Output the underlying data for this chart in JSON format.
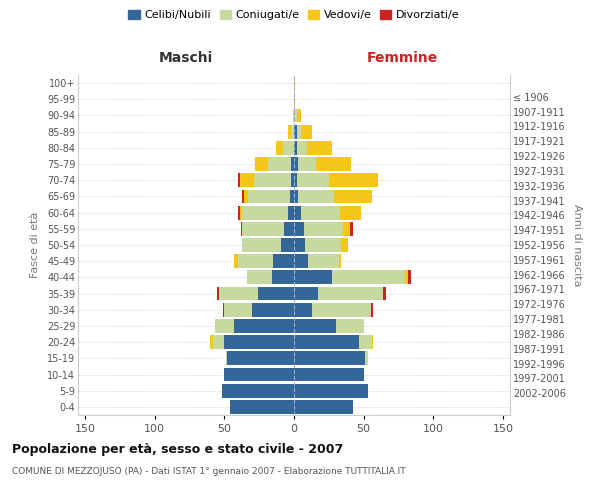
{
  "age_groups": [
    "0-4",
    "5-9",
    "10-14",
    "15-19",
    "20-24",
    "25-29",
    "30-34",
    "35-39",
    "40-44",
    "45-49",
    "50-54",
    "55-59",
    "60-64",
    "65-69",
    "70-74",
    "75-79",
    "80-84",
    "85-89",
    "90-94",
    "95-99",
    "100+"
  ],
  "birth_years": [
    "2002-2006",
    "1997-2001",
    "1992-1996",
    "1987-1991",
    "1982-1986",
    "1977-1981",
    "1972-1976",
    "1967-1971",
    "1962-1966",
    "1957-1961",
    "1952-1956",
    "1947-1951",
    "1942-1946",
    "1937-1941",
    "1932-1936",
    "1927-1931",
    "1922-1926",
    "1917-1921",
    "1912-1916",
    "1907-1911",
    "≤ 1906"
  ],
  "male": {
    "celibi": [
      46,
      52,
      50,
      48,
      50,
      43,
      30,
      26,
      16,
      15,
      9,
      7,
      4,
      3,
      2,
      2,
      0,
      0,
      0,
      0,
      0
    ],
    "coniugati": [
      0,
      0,
      0,
      1,
      8,
      14,
      20,
      28,
      18,
      25,
      28,
      30,
      33,
      30,
      27,
      17,
      8,
      2,
      1,
      0,
      0
    ],
    "vedovi": [
      0,
      0,
      0,
      0,
      2,
      0,
      0,
      0,
      0,
      3,
      0,
      0,
      2,
      3,
      10,
      9,
      5,
      2,
      0,
      0,
      0
    ],
    "divorziati": [
      0,
      0,
      0,
      0,
      0,
      0,
      1,
      1,
      0,
      0,
      0,
      1,
      1,
      1,
      1,
      0,
      0,
      0,
      0,
      0,
      0
    ]
  },
  "female": {
    "nubili": [
      42,
      53,
      50,
      51,
      47,
      30,
      13,
      17,
      27,
      10,
      8,
      7,
      5,
      3,
      2,
      3,
      2,
      2,
      0,
      0,
      0
    ],
    "coniugate": [
      0,
      0,
      0,
      2,
      9,
      20,
      42,
      47,
      53,
      22,
      26,
      28,
      28,
      26,
      23,
      13,
      7,
      3,
      2,
      0,
      0
    ],
    "vedove": [
      0,
      0,
      0,
      0,
      1,
      0,
      0,
      0,
      2,
      2,
      5,
      5,
      15,
      27,
      35,
      25,
      18,
      8,
      3,
      1,
      1
    ],
    "divorziate": [
      0,
      0,
      0,
      0,
      0,
      0,
      2,
      2,
      2,
      0,
      0,
      2,
      0,
      0,
      0,
      0,
      0,
      0,
      0,
      0,
      0
    ]
  },
  "colors": {
    "celibi": "#336699",
    "coniugati": "#c8d9a0",
    "vedovi": "#f5c518",
    "divorziati": "#cc2222"
  },
  "xlim": 155,
  "title": "Popolazione per età, sesso e stato civile - 2007",
  "subtitle": "COMUNE DI MEZZOJUSO (PA) - Dati ISTAT 1° gennaio 2007 - Elaborazione TUTTITALIA.IT",
  "ylabel_left": "Fasce di età",
  "ylabel_right": "Anni di nascita",
  "xlabel_left": "Maschi",
  "xlabel_right": "Femmine"
}
